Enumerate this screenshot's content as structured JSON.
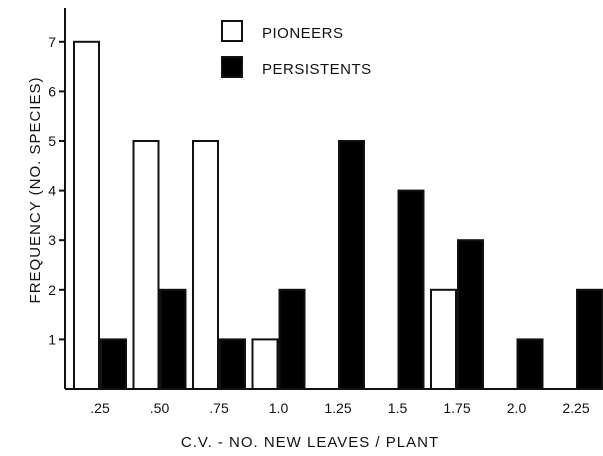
{
  "chart_data": {
    "type": "bar",
    "categories": [
      ".25",
      ".50",
      ".75",
      "1.0",
      "1.25",
      "1.5",
      "1.75",
      "2.0",
      "2.25"
    ],
    "series": [
      {
        "name": "PIONEERS",
        "fill": "#ffffff",
        "values": [
          7,
          5,
          5,
          1,
          0,
          0,
          2,
          0,
          0
        ]
      },
      {
        "name": "PERSISTENTS",
        "fill": "#000000",
        "values": [
          1,
          2,
          1,
          2,
          5,
          4,
          3,
          1,
          2
        ]
      }
    ],
    "xlabel": "C.V. - NO. NEW LEAVES   / PLANT",
    "ylabel": "FREQUENCY   (NO. SPECIES)",
    "yticks": [
      "1",
      "2",
      "3",
      "4",
      "5",
      "6",
      "7"
    ],
    "ylim": [
      0,
      8
    ],
    "grid": false,
    "legend_position": "top-center"
  }
}
